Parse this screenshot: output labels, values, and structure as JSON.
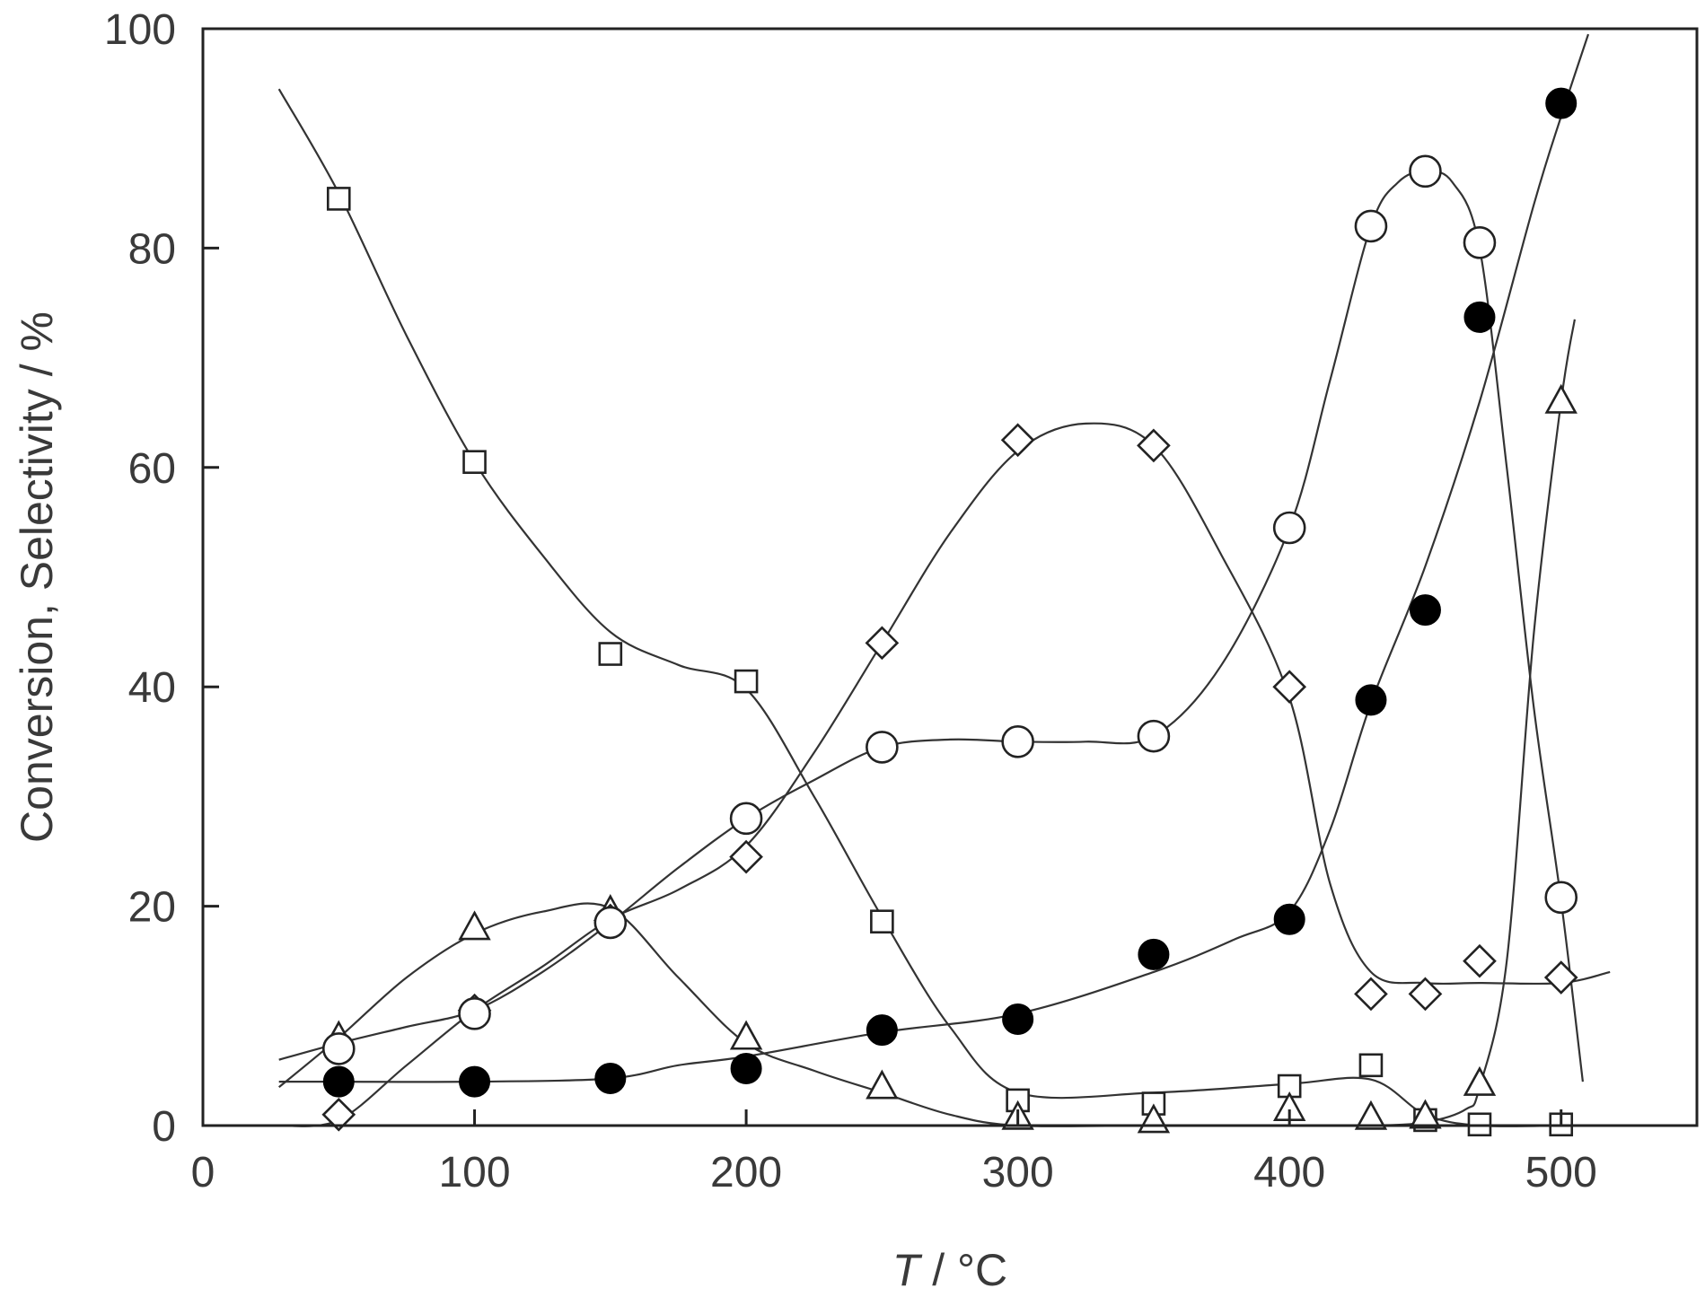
{
  "chart_data": {
    "type": "scatter",
    "title": "",
    "xlabel_italic": "T",
    "xlabel_rest": " / °C",
    "ylabel": "Conversion, Selectivity / %",
    "xlim": [
      0,
      550
    ],
    "ylim": [
      0,
      100
    ],
    "x_ticks": [
      0,
      100,
      200,
      300,
      400,
      500
    ],
    "y_ticks": [
      0,
      20,
      40,
      60,
      80,
      100
    ],
    "grid": false,
    "legend": "none",
    "series": [
      {
        "marker": "square-open",
        "points": [
          [
            50,
            84.5
          ],
          [
            100,
            60.5
          ],
          [
            150,
            43
          ],
          [
            200,
            40.5
          ],
          [
            250,
            18.6
          ],
          [
            300,
            2.3
          ],
          [
            350,
            2
          ],
          [
            400,
            3.6
          ],
          [
            430,
            5.5
          ],
          [
            450,
            0.5
          ],
          [
            470,
            0.1
          ],
          [
            500,
            0.1
          ]
        ],
        "curve": [
          [
            28,
            94.5
          ],
          [
            50,
            85
          ],
          [
            75,
            72
          ],
          [
            100,
            60.5
          ],
          [
            125,
            52
          ],
          [
            150,
            45
          ],
          [
            175,
            42
          ],
          [
            200,
            39.8
          ],
          [
            225,
            30
          ],
          [
            250,
            19
          ],
          [
            275,
            9
          ],
          [
            300,
            3
          ],
          [
            350,
            3
          ],
          [
            400,
            3.8
          ],
          [
            430,
            4.2
          ],
          [
            450,
            1
          ],
          [
            470,
            0
          ],
          [
            500,
            0
          ]
        ]
      },
      {
        "marker": "triangle-open",
        "points": [
          [
            50,
            8
          ],
          [
            100,
            18
          ],
          [
            150,
            19.5
          ],
          [
            200,
            8
          ],
          [
            250,
            3.5
          ],
          [
            300,
            0.7
          ],
          [
            350,
            0.4
          ],
          [
            400,
            1.5
          ],
          [
            430,
            0.7
          ],
          [
            450,
            0.8
          ],
          [
            470,
            3.8
          ],
          [
            500,
            66
          ]
        ],
        "curve": [
          [
            28,
            3.5
          ],
          [
            50,
            8
          ],
          [
            75,
            13.5
          ],
          [
            100,
            17.5
          ],
          [
            125,
            19.5
          ],
          [
            150,
            19.8
          ],
          [
            175,
            13.5
          ],
          [
            200,
            7.5
          ],
          [
            225,
            5
          ],
          [
            250,
            3
          ],
          [
            275,
            1
          ],
          [
            300,
            0
          ],
          [
            350,
            0
          ],
          [
            400,
            0
          ],
          [
            430,
            0
          ],
          [
            450,
            0.3
          ],
          [
            465,
            1.5
          ],
          [
            470,
            3.5
          ],
          [
            480,
            15
          ],
          [
            490,
            45
          ],
          [
            500,
            66
          ],
          [
            505,
            73.5
          ]
        ]
      },
      {
        "marker": "diamond-open",
        "points": [
          [
            50,
            1
          ],
          [
            100,
            10.5
          ],
          [
            150,
            18.7
          ],
          [
            200,
            24.5
          ],
          [
            250,
            44
          ],
          [
            300,
            62.5
          ],
          [
            350,
            62
          ],
          [
            400,
            40
          ],
          [
            430,
            12
          ],
          [
            450,
            12
          ],
          [
            470,
            15
          ],
          [
            500,
            13.5
          ]
        ],
        "curve": [
          [
            28,
            0
          ],
          [
            50,
            0.5
          ],
          [
            75,
            5.5
          ],
          [
            100,
            10.5
          ],
          [
            125,
            14.5
          ],
          [
            150,
            18.8
          ],
          [
            175,
            21.5
          ],
          [
            200,
            25.5
          ],
          [
            225,
            34
          ],
          [
            250,
            44
          ],
          [
            275,
            54
          ],
          [
            300,
            61.5
          ],
          [
            325,
            64
          ],
          [
            350,
            62
          ],
          [
            375,
            52
          ],
          [
            400,
            39
          ],
          [
            415,
            22
          ],
          [
            430,
            14
          ],
          [
            450,
            13
          ],
          [
            470,
            13
          ],
          [
            500,
            13
          ],
          [
            518,
            14
          ]
        ]
      },
      {
        "marker": "circle-open",
        "points": [
          [
            50,
            7
          ],
          [
            100,
            10.2
          ],
          [
            150,
            18.5
          ],
          [
            200,
            28
          ],
          [
            250,
            34.5
          ],
          [
            300,
            35
          ],
          [
            350,
            35.5
          ],
          [
            400,
            54.5
          ],
          [
            430,
            82
          ],
          [
            450,
            87
          ],
          [
            470,
            80.5
          ],
          [
            500,
            20.8
          ]
        ],
        "curve": [
          [
            28,
            6
          ],
          [
            50,
            7.5
          ],
          [
            75,
            9
          ],
          [
            100,
            10.5
          ],
          [
            125,
            14
          ],
          [
            150,
            18.5
          ],
          [
            175,
            23.5
          ],
          [
            200,
            28
          ],
          [
            225,
            31.5
          ],
          [
            250,
            34.5
          ],
          [
            275,
            35.2
          ],
          [
            300,
            35
          ],
          [
            325,
            35
          ],
          [
            350,
            35.5
          ],
          [
            375,
            42
          ],
          [
            400,
            54.5
          ],
          [
            415,
            68
          ],
          [
            430,
            82
          ],
          [
            440,
            86
          ],
          [
            450,
            87
          ],
          [
            460,
            86
          ],
          [
            470,
            80
          ],
          [
            480,
            60
          ],
          [
            490,
            38
          ],
          [
            500,
            20.5
          ],
          [
            508,
            4
          ]
        ]
      },
      {
        "marker": "circle-filled",
        "points": [
          [
            50,
            4
          ],
          [
            100,
            4
          ],
          [
            150,
            4.3
          ],
          [
            200,
            5.2
          ],
          [
            250,
            8.7
          ],
          [
            300,
            9.7
          ],
          [
            350,
            15.6
          ],
          [
            400,
            18.8
          ],
          [
            430,
            38.8
          ],
          [
            450,
            47
          ],
          [
            470,
            73.7
          ],
          [
            500,
            93.2
          ]
        ],
        "curve": [
          [
            28,
            4
          ],
          [
            50,
            4
          ],
          [
            100,
            4
          ],
          [
            150,
            4.3
          ],
          [
            175,
            5.5
          ],
          [
            200,
            6.3
          ],
          [
            250,
            8.5
          ],
          [
            300,
            10.2
          ],
          [
            350,
            14
          ],
          [
            380,
            17
          ],
          [
            400,
            19.5
          ],
          [
            415,
            27
          ],
          [
            430,
            38.5
          ],
          [
            450,
            51
          ],
          [
            470,
            66
          ],
          [
            490,
            84
          ],
          [
            500,
            92
          ],
          [
            510,
            99.5
          ]
        ]
      }
    ]
  }
}
